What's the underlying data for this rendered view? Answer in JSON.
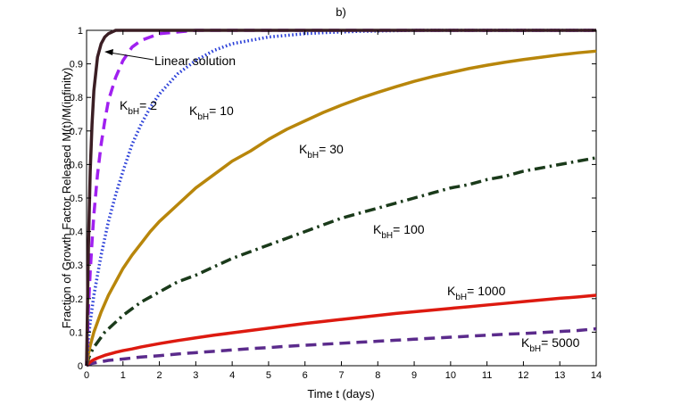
{
  "chart_data": {
    "type": "line",
    "title": "b)",
    "xlabel": "Time t (days)",
    "ylabel": "Fraction of Growth Factor Released M(t)/M(infinity)",
    "xlim": [
      0,
      14
    ],
    "ylim": [
      0,
      1
    ],
    "xticks": [
      0,
      1,
      2,
      3,
      4,
      5,
      6,
      7,
      8,
      9,
      10,
      11,
      12,
      13,
      14
    ],
    "yticks": [
      "0",
      "0.1",
      "0.2",
      "0.3",
      "0.4",
      "0.5",
      "0.6",
      "0.7",
      "0.8",
      "0.9",
      "1"
    ],
    "grid": false,
    "x": [
      0,
      0.05,
      0.1,
      0.15,
      0.2,
      0.3,
      0.4,
      0.5,
      0.6,
      0.8,
      1,
      1.25,
      1.5,
      1.75,
      2,
      2.5,
      3,
      3.5,
      4,
      4.5,
      5,
      5.5,
      6,
      6.5,
      7,
      7.5,
      8,
      8.5,
      9,
      9.5,
      10,
      10.5,
      11,
      11.5,
      12,
      12.5,
      13,
      13.5,
      14
    ],
    "series": [
      {
        "name": "Linear solution",
        "color": "#3b1e24",
        "dash": "solid",
        "values": [
          0,
          0.35,
          0.58,
          0.72,
          0.82,
          0.92,
          0.96,
          0.98,
          0.99,
          1,
          1,
          1,
          1,
          1,
          1,
          1,
          1,
          1,
          1,
          1,
          1,
          1,
          1,
          1,
          1,
          1,
          1,
          1,
          1,
          1,
          1,
          1,
          1,
          1,
          1,
          1,
          1,
          1,
          1
        ]
      },
      {
        "name": "KbH = 2",
        "color": "#a020f0",
        "dash": "dashed",
        "values": [
          0,
          0.17,
          0.28,
          0.37,
          0.45,
          0.57,
          0.66,
          0.73,
          0.79,
          0.86,
          0.91,
          0.95,
          0.97,
          0.98,
          0.99,
          0.995,
          1,
          1,
          1,
          1,
          1,
          1,
          1,
          1,
          1,
          1,
          1,
          1,
          1,
          1,
          1,
          1,
          1,
          1,
          1,
          1,
          1,
          1,
          1
        ]
      },
      {
        "name": "KbH = 10",
        "color": "#2a3fd8",
        "dash": "dotted",
        "values": [
          0,
          0.08,
          0.13,
          0.17,
          0.21,
          0.27,
          0.33,
          0.38,
          0.43,
          0.51,
          0.58,
          0.66,
          0.72,
          0.77,
          0.81,
          0.87,
          0.91,
          0.94,
          0.96,
          0.97,
          0.98,
          0.985,
          0.99,
          0.993,
          0.995,
          0.997,
          0.998,
          0.999,
          1,
          1,
          1,
          1,
          1,
          1,
          1,
          1,
          1,
          1,
          1
        ]
      },
      {
        "name": "KbH = 30",
        "color": "#b8860b",
        "dash": "solid",
        "values": [
          0,
          0.035,
          0.06,
          0.08,
          0.1,
          0.13,
          0.16,
          0.185,
          0.21,
          0.25,
          0.29,
          0.33,
          0.365,
          0.4,
          0.43,
          0.48,
          0.53,
          0.57,
          0.61,
          0.64,
          0.675,
          0.705,
          0.73,
          0.755,
          0.777,
          0.797,
          0.815,
          0.832,
          0.848,
          0.862,
          0.874,
          0.886,
          0.896,
          0.905,
          0.913,
          0.92,
          0.927,
          0.933,
          0.938
        ]
      },
      {
        "name": "KbH = 100",
        "color": "#1a3a1a",
        "dash": "dashdot",
        "values": [
          0,
          0.02,
          0.035,
          0.045,
          0.055,
          0.07,
          0.085,
          0.1,
          0.11,
          0.13,
          0.15,
          0.17,
          0.19,
          0.205,
          0.22,
          0.25,
          0.27,
          0.295,
          0.32,
          0.34,
          0.36,
          0.38,
          0.4,
          0.42,
          0.44,
          0.455,
          0.47,
          0.485,
          0.5,
          0.515,
          0.53,
          0.54,
          0.555,
          0.565,
          0.58,
          0.59,
          0.6,
          0.61,
          0.62
        ]
      },
      {
        "name": "KbH = 1000",
        "color": "#dd1a10",
        "dash": "solid",
        "values": [
          0,
          0.006,
          0.011,
          0.015,
          0.018,
          0.023,
          0.027,
          0.031,
          0.034,
          0.04,
          0.045,
          0.05,
          0.056,
          0.061,
          0.066,
          0.075,
          0.083,
          0.091,
          0.098,
          0.105,
          0.112,
          0.119,
          0.126,
          0.132,
          0.138,
          0.144,
          0.15,
          0.156,
          0.161,
          0.166,
          0.171,
          0.176,
          0.181,
          0.186,
          0.191,
          0.196,
          0.201,
          0.205,
          0.21
        ]
      },
      {
        "name": "KbH = 5000",
        "color": "#5b2b8c",
        "dash": "dashed",
        "values": [
          0,
          0.003,
          0.005,
          0.007,
          0.008,
          0.01,
          0.012,
          0.014,
          0.016,
          0.018,
          0.02,
          0.023,
          0.026,
          0.028,
          0.03,
          0.035,
          0.039,
          0.043,
          0.047,
          0.051,
          0.054,
          0.058,
          0.061,
          0.064,
          0.067,
          0.07,
          0.073,
          0.076,
          0.079,
          0.082,
          0.085,
          0.088,
          0.091,
          0.094,
          0.096,
          0.099,
          0.102,
          0.105,
          0.11
        ]
      }
    ],
    "annotations": {
      "linear": "Linear solution",
      "k2": {
        "main": "K",
        "sub": "bH",
        "rest": "= 2"
      },
      "k10": {
        "main": "K",
        "sub": "bH",
        "rest": "= 10"
      },
      "k30": {
        "main": "K",
        "sub": "bH",
        "rest": "= 30"
      },
      "k100": {
        "main": "K",
        "sub": "bH",
        "rest": "= 100"
      },
      "k1000": {
        "main": "K",
        "sub": "bH",
        "rest": "= 1000"
      },
      "k5000": {
        "main": "K",
        "sub": "bH",
        "rest": "= 5000"
      }
    }
  }
}
